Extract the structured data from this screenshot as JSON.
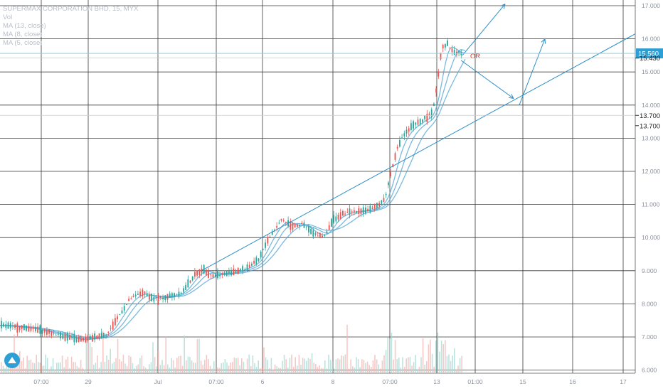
{
  "legend": {
    "title": "SUPERMAX CORPORATION BHD, 15, MYX",
    "vol": "Vol",
    "ma1": "MA (13, close)",
    "ma2": "MA (8, close)",
    "ma3": "MA (5, close)"
  },
  "colors": {
    "up": "#26a69a",
    "down": "#ef5350",
    "ma": "#5aa8d6",
    "trend": "#2d8fc7",
    "grid": "#3a3a3a",
    "annotation": "#c0392b"
  },
  "chart_data": {
    "type": "candlestick",
    "title": "SUPERMAX CORPORATION BHD, 15, MYX",
    "y_ticks": [
      "17.000",
      "16.000",
      "15.000",
      "14.000",
      "13.000",
      "12.000",
      "11.000",
      "10.000",
      "9.000",
      "8.000",
      "7.000",
      "6.000"
    ],
    "ylim": [
      5.9,
      17.3
    ],
    "x_ticks": [
      "07:00",
      "29",
      "Jul",
      "07:00",
      "6",
      "8",
      "07:00",
      "13",
      "01:00",
      "15",
      "16",
      "17"
    ],
    "price_tags": [
      {
        "label": "15.560",
        "value": 15.56,
        "style": "current"
      },
      {
        "label": "15.430",
        "value": 15.43,
        "style": "level"
      },
      {
        "label": "13.700",
        "value": 13.7,
        "style": "level"
      },
      {
        "label": "13.700",
        "value": 13.7,
        "style": "level2"
      }
    ],
    "annotation_text": "OR",
    "price_path": [
      [
        0,
        7.35
      ],
      [
        45,
        7.25
      ],
      [
        85,
        7.05
      ],
      [
        112,
        6.9
      ],
      [
        128,
        6.97
      ],
      [
        150,
        7.1
      ],
      [
        165,
        7.6
      ],
      [
        182,
        8.15
      ],
      [
        200,
        8.35
      ],
      [
        215,
        8.15
      ],
      [
        232,
        8.2
      ],
      [
        255,
        8.35
      ],
      [
        272,
        8.85
      ],
      [
        284,
        9.05
      ],
      [
        298,
        8.85
      ],
      [
        318,
        8.92
      ],
      [
        342,
        9.05
      ],
      [
        362,
        9.3
      ],
      [
        376,
        9.95
      ],
      [
        395,
        10.55
      ],
      [
        410,
        10.35
      ],
      [
        425,
        10.4
      ],
      [
        440,
        10.1
      ],
      [
        455,
        10.05
      ],
      [
        468,
        10.55
      ],
      [
        485,
        10.75
      ],
      [
        500,
        10.8
      ],
      [
        522,
        10.85
      ],
      [
        540,
        11.15
      ],
      [
        548,
        11.9
      ],
      [
        556,
        12.6
      ],
      [
        565,
        13.05
      ],
      [
        578,
        13.35
      ],
      [
        593,
        13.55
      ],
      [
        607,
        13.75
      ],
      [
        614,
        14.7
      ],
      [
        620,
        15.75
      ],
      [
        628,
        15.85
      ],
      [
        636,
        15.6
      ],
      [
        648,
        15.56
      ]
    ],
    "volume_note": "volume histogram along bottom"
  }
}
